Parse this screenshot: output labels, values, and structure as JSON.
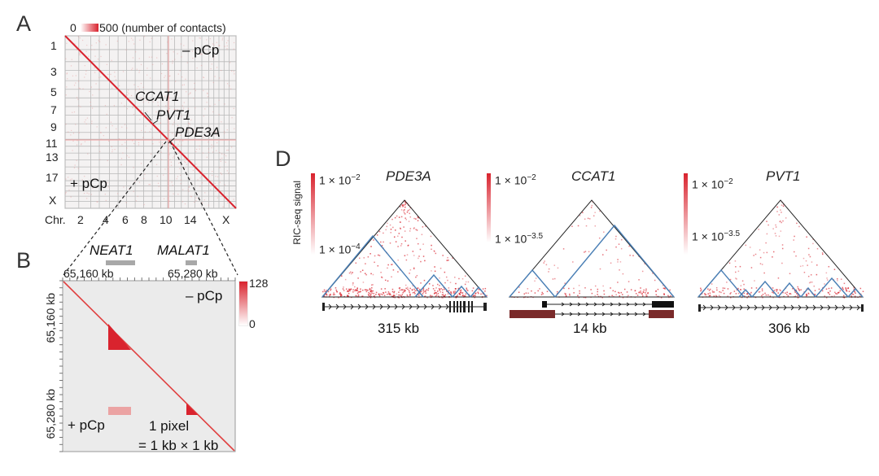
{
  "panelA": {
    "letter": "A",
    "scale_min": "0",
    "scale_max": "500 (number of contacts)",
    "minus_label": "– pCp",
    "plus_label": "+ pCp",
    "y_ticks": [
      "1",
      "3",
      "5",
      "7",
      "9",
      "11",
      "13",
      "17",
      "X"
    ],
    "x_axis_prefix": "Chr.",
    "x_ticks": [
      "2",
      "4",
      "6",
      "8",
      "10",
      "14",
      "X"
    ],
    "gene_ccat1": "CCAT1",
    "gene_pvt1": "PVT1",
    "gene_pde3a": "PDE3A"
  },
  "panelB": {
    "letter": "B",
    "gene_neat1": "NEAT1",
    "gene_malat1": "MALAT1",
    "x_start": "65,160 kb",
    "x_end": "65,280 kb",
    "y_start": "65,160 kb",
    "y_end": "65,280 kb",
    "scale_max": "128",
    "scale_min": "0",
    "minus_label": "– pCp",
    "plus_label": "+ pCp",
    "pixel_note_1": "1 pixel",
    "pixel_note_2": "= 1 kb × 1 kb"
  },
  "panelD": {
    "letter": "D",
    "ylabel": "RIC-seq signal",
    "maps": [
      {
        "gene": "PDE3A",
        "scale_top": "1 × 10",
        "scale_top_exp": "−2",
        "scale_bottom": "1 × 10",
        "scale_bottom_exp": "−4",
        "size": "315 kb"
      },
      {
        "gene": "CCAT1",
        "scale_top": "1 × 10",
        "scale_top_exp": "−2",
        "scale_bottom": "1 × 10",
        "scale_bottom_exp": "−3.5",
        "size": "14 kb"
      },
      {
        "gene": "PVT1",
        "scale_top": "1 × 10",
        "scale_top_exp": "−2",
        "scale_bottom": "1 × 10",
        "scale_bottom_exp": "−3.5",
        "size": "306 kb"
      }
    ]
  },
  "colors": {
    "contact_red": "#d9232e",
    "domain_blue": "#4a7fb5",
    "gene_track": "#7a2a2a",
    "grid": "#b9b9b9",
    "background_gray": "#ebebeb"
  }
}
